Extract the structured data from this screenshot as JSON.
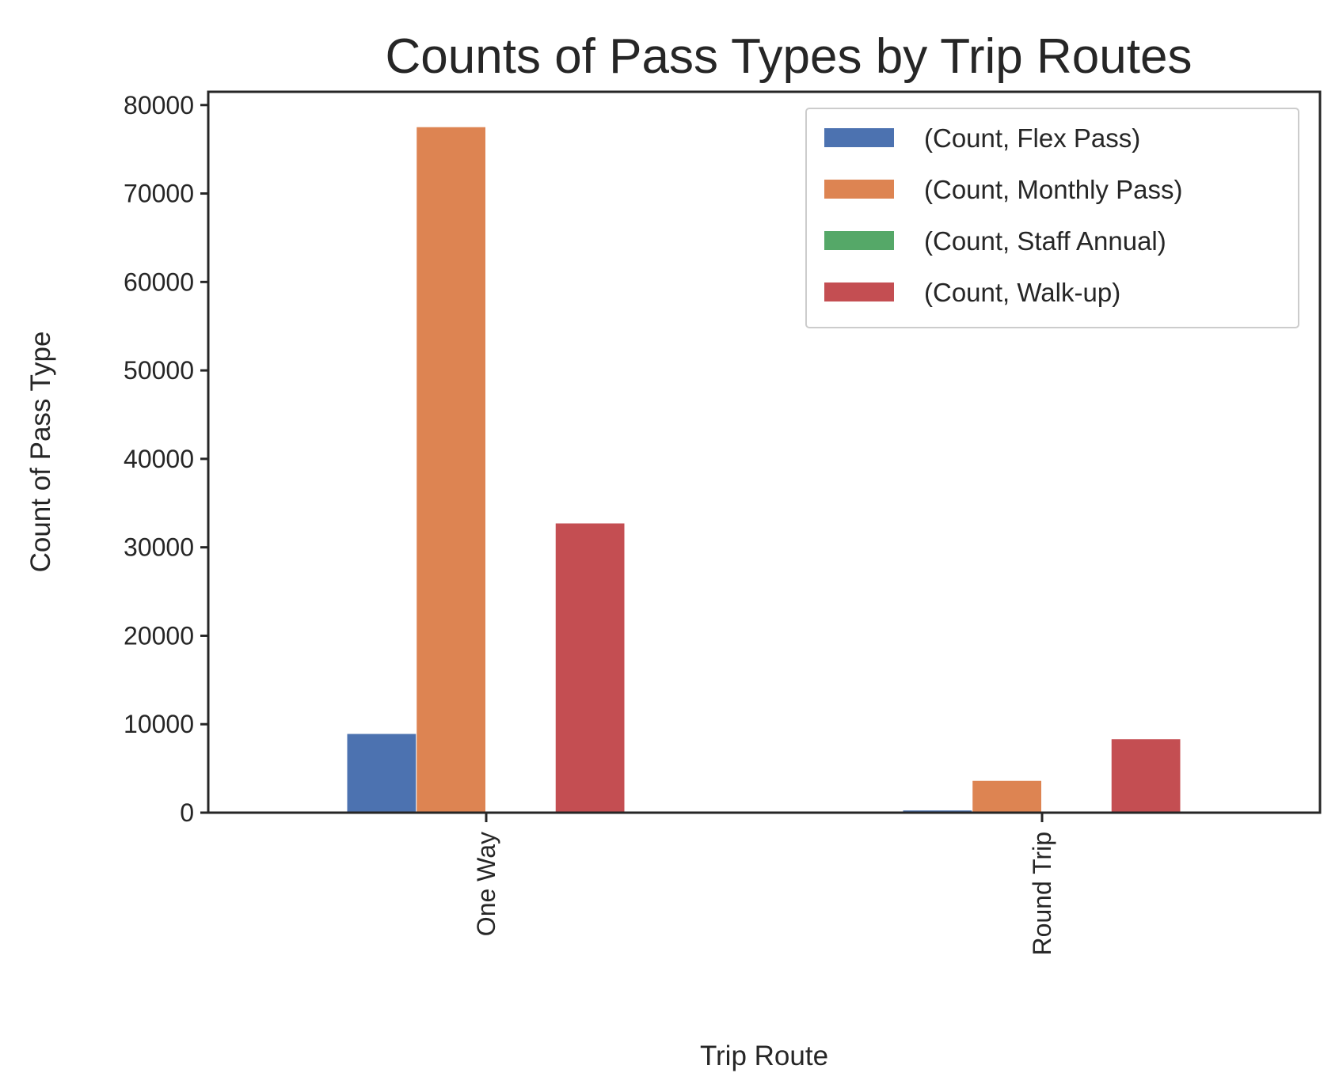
{
  "chart_data": {
    "type": "bar",
    "title": "Counts of Pass Types by Trip Routes",
    "xlabel": "Trip Route",
    "ylabel": "Count of Pass Type",
    "categories": [
      "One Way",
      "Round Trip"
    ],
    "series": [
      {
        "name": "(Count, Flex Pass)",
        "color": "#4c72b0",
        "values": [
          8900,
          250
        ]
      },
      {
        "name": "(Count, Monthly Pass)",
        "color": "#dd8452",
        "values": [
          77500,
          3600
        ]
      },
      {
        "name": "(Count, Staff Annual)",
        "color": "#55a868",
        "values": [
          0,
          0
        ]
      },
      {
        "name": "(Count, Walk-up)",
        "color": "#c44e52",
        "values": [
          32700,
          8300
        ]
      }
    ],
    "ylim": [
      0,
      81500
    ],
    "yticks": [
      0,
      10000,
      20000,
      30000,
      40000,
      50000,
      60000,
      70000,
      80000
    ],
    "ytick_labels": [
      "0",
      "10000",
      "20000",
      "30000",
      "40000",
      "50000",
      "60000",
      "70000",
      "80000"
    ],
    "xtick_rotation": "vertical",
    "grid": false,
    "legend": "top-right"
  }
}
